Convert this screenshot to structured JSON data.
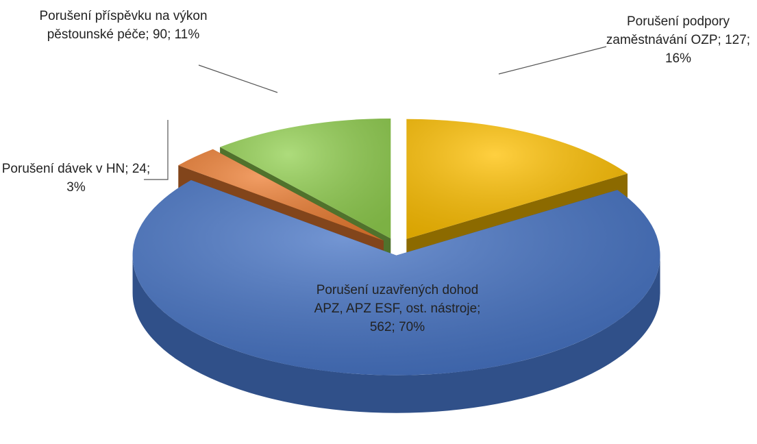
{
  "chart_data": {
    "type": "pie3d",
    "values": [
      127,
      562,
      24,
      90
    ],
    "value_labels": [
      "Porušení podpory zaměstnávání OZP; 127; 16%",
      "Porušení uzavřených dohod APZ, APZ ESF, ost. nástroje; 562; 70%",
      "Porušení dávek v HN; 24; 3%",
      "Porušení příspěvku na výkon pěstounské péče; 90; 11%"
    ],
    "colors": [
      "#ffc000",
      "#4472c4",
      "#ed7d31",
      "#92d050"
    ]
  }
}
